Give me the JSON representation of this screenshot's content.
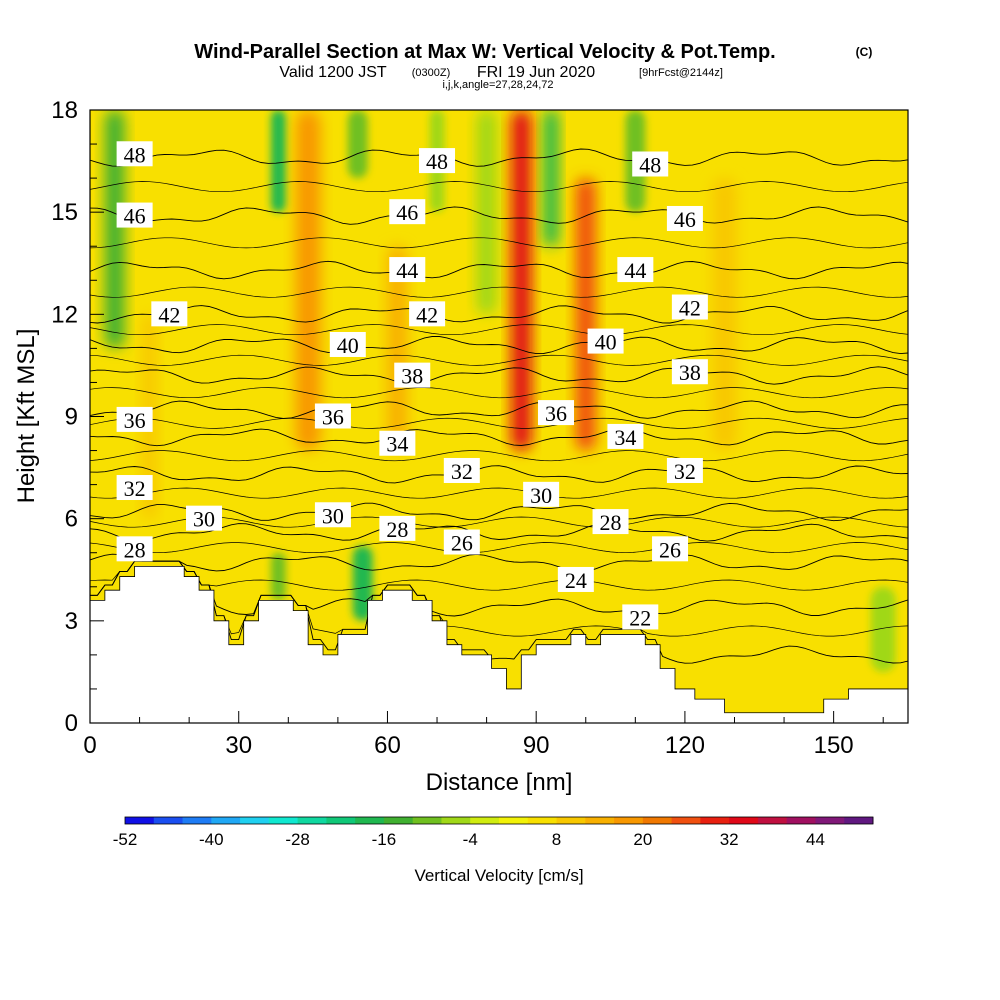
{
  "chart_data": {
    "type": "heatmap",
    "title": {
      "main": "Wind-Parallel Section at Max W: Vertical Velocity & Pot.Temp.",
      "copyright": "(C)",
      "line2_a": "Valid 1200 JST",
      "line2_b": "(0300Z)",
      "line2_c": "FRI 19 Jun 2020",
      "line2_d": "[9hrFcst@2144z]",
      "line3": "i,j,k,angle=27,28,24,72"
    },
    "xlabel": "Distance [nm]",
    "ylabel": "Height [Kft MSL]",
    "xlim": [
      0,
      165
    ],
    "ylim": [
      0,
      18
    ],
    "x_ticks": [
      "0",
      "30",
      "60",
      "90",
      "120",
      "150"
    ],
    "y_ticks": [
      "0",
      "3",
      "6",
      "9",
      "12",
      "15",
      "18"
    ],
    "colorbar": {
      "label": "Vertical Velocity [cm/s]",
      "tick_labels": [
        "-52",
        "-40",
        "-28",
        "-16",
        "-4",
        "8",
        "20",
        "32",
        "44"
      ],
      "levels": [
        -52,
        -48,
        -44,
        -40,
        -36,
        -32,
        -28,
        -24,
        -20,
        -16,
        -12,
        -8,
        -4,
        0,
        4,
        8,
        12,
        16,
        20,
        24,
        28,
        32,
        36,
        40,
        44,
        48
      ],
      "colors": [
        "#1010e6",
        "#1a4ef0",
        "#1e7cf5",
        "#20a8f5",
        "#20d0f0",
        "#10e8d0",
        "#10d8a0",
        "#10c878",
        "#20b850",
        "#40b030",
        "#70c020",
        "#a0d818",
        "#d0ec10",
        "#f2f208",
        "#f8e000",
        "#f8c800",
        "#f8b000",
        "#f89800",
        "#f07800",
        "#f05010",
        "#e82010",
        "#e00818",
        "#c01040",
        "#a01060",
        "#801878",
        "#601880"
      ]
    },
    "theta_isolines": [
      {
        "value": 22,
        "label": "22",
        "y": 2.0
      },
      {
        "value": 24,
        "label": "24",
        "y": 3.4
      },
      {
        "value": 26,
        "label": "26",
        "y": 4.7
      },
      {
        "value": 28,
        "label": "28",
        "y": 5.6
      },
      {
        "value": 30,
        "label": "30",
        "y": 6.2
      },
      {
        "value": 32,
        "label": "32",
        "y": 7.3
      },
      {
        "value": 34,
        "label": "34",
        "y": 8.4
      },
      {
        "value": 36,
        "label": "36",
        "y": 9.2
      },
      {
        "value": 38,
        "label": "38",
        "y": 10.2
      },
      {
        "value": 40,
        "label": "40",
        "y": 11.1
      },
      {
        "value": 42,
        "label": "42",
        "y": 12.0
      },
      {
        "value": 44,
        "label": "44",
        "y": 13.3
      },
      {
        "value": 46,
        "label": "46",
        "y": 14.9
      },
      {
        "value": 48,
        "label": "48",
        "y": 16.6
      }
    ],
    "theta_labels": [
      {
        "text": "48",
        "x": 9,
        "y": 16.7
      },
      {
        "text": "48",
        "x": 70,
        "y": 16.5
      },
      {
        "text": "48",
        "x": 113,
        "y": 16.4
      },
      {
        "text": "46",
        "x": 9,
        "y": 14.9
      },
      {
        "text": "46",
        "x": 64,
        "y": 15.0
      },
      {
        "text": "46",
        "x": 120,
        "y": 14.8
      },
      {
        "text": "44",
        "x": 64,
        "y": 13.3
      },
      {
        "text": "44",
        "x": 110,
        "y": 13.3
      },
      {
        "text": "42",
        "x": 16,
        "y": 12.0
      },
      {
        "text": "42",
        "x": 68,
        "y": 12.0
      },
      {
        "text": "42",
        "x": 121,
        "y": 12.2
      },
      {
        "text": "40",
        "x": 52,
        "y": 11.1
      },
      {
        "text": "40",
        "x": 104,
        "y": 11.2
      },
      {
        "text": "38",
        "x": 65,
        "y": 10.2
      },
      {
        "text": "38",
        "x": 121,
        "y": 10.3
      },
      {
        "text": "36",
        "x": 9,
        "y": 8.9
      },
      {
        "text": "36",
        "x": 49,
        "y": 9.0
      },
      {
        "text": "36",
        "x": 94,
        "y": 9.1
      },
      {
        "text": "34",
        "x": 62,
        "y": 8.2
      },
      {
        "text": "34",
        "x": 108,
        "y": 8.4
      },
      {
        "text": "32",
        "x": 9,
        "y": 6.9
      },
      {
        "text": "32",
        "x": 75,
        "y": 7.4
      },
      {
        "text": "32",
        "x": 120,
        "y": 7.4
      },
      {
        "text": "30",
        "x": 23,
        "y": 6.0
      },
      {
        "text": "30",
        "x": 49,
        "y": 6.1
      },
      {
        "text": "30",
        "x": 91,
        "y": 6.7
      },
      {
        "text": "28",
        "x": 9,
        "y": 5.1
      },
      {
        "text": "28",
        "x": 62,
        "y": 5.7
      },
      {
        "text": "28",
        "x": 105,
        "y": 5.9
      },
      {
        "text": "26",
        "x": 75,
        "y": 5.3
      },
      {
        "text": "26",
        "x": 117,
        "y": 5.1
      },
      {
        "text": "24",
        "x": 98,
        "y": 4.2
      },
      {
        "text": "22",
        "x": 111,
        "y": 3.1
      }
    ],
    "vertical_velocity_bands": [
      {
        "x": 5,
        "width": 4,
        "ytop": 18,
        "ybottom": 11,
        "value": -16
      },
      {
        "x": 12,
        "width": 3,
        "ytop": 12,
        "ybottom": 6,
        "value": 8
      },
      {
        "x": 25,
        "width": 5,
        "ytop": 18,
        "ybottom": 9,
        "value": 6
      },
      {
        "x": 38,
        "width": 3,
        "ytop": 18,
        "ybottom": 15,
        "value": -18
      },
      {
        "x": 44,
        "width": 5,
        "ytop": 18,
        "ybottom": 8,
        "value": 18
      },
      {
        "x": 54,
        "width": 4,
        "ytop": 18,
        "ybottom": 16,
        "value": -10
      },
      {
        "x": 62,
        "width": 4,
        "ytop": 14,
        "ybottom": 8,
        "value": 14
      },
      {
        "x": 70,
        "width": 3,
        "ytop": 18,
        "ybottom": 15,
        "value": -8
      },
      {
        "x": 80,
        "width": 4,
        "ytop": 18,
        "ybottom": 12,
        "value": -6
      },
      {
        "x": 87,
        "width": 4,
        "ytop": 18,
        "ybottom": 8,
        "value": 34
      },
      {
        "x": 93,
        "width": 3,
        "ytop": 18,
        "ybottom": 14,
        "value": -18
      },
      {
        "x": 100,
        "width": 4,
        "ytop": 16,
        "ybottom": 8,
        "value": 24
      },
      {
        "x": 110,
        "width": 4,
        "ytop": 18,
        "ybottom": 15,
        "value": -12
      },
      {
        "x": 128,
        "width": 5,
        "ytop": 16,
        "ybottom": 8,
        "value": 8
      },
      {
        "x": 55,
        "width": 4,
        "ytop": 5.2,
        "ybottom": 3.0,
        "value": -20
      },
      {
        "x": 38,
        "width": 3,
        "ytop": 5.0,
        "ybottom": 3.6,
        "value": -10
      },
      {
        "x": 160,
        "width": 5,
        "ytop": 4.0,
        "ybottom": 1.5,
        "value": -6
      }
    ],
    "terrain_profile": [
      {
        "x": 0,
        "y": 3.6
      },
      {
        "x": 3,
        "y": 3.6
      },
      {
        "x": 3,
        "y": 3.9
      },
      {
        "x": 6,
        "y": 3.9
      },
      {
        "x": 6,
        "y": 4.3
      },
      {
        "x": 9,
        "y": 4.3
      },
      {
        "x": 9,
        "y": 4.6
      },
      {
        "x": 19,
        "y": 4.6
      },
      {
        "x": 19,
        "y": 4.3
      },
      {
        "x": 22,
        "y": 4.3
      },
      {
        "x": 22,
        "y": 3.9
      },
      {
        "x": 25,
        "y": 3.9
      },
      {
        "x": 25,
        "y": 3.0
      },
      {
        "x": 28,
        "y": 3.0
      },
      {
        "x": 28,
        "y": 2.3
      },
      {
        "x": 31,
        "y": 2.3
      },
      {
        "x": 31,
        "y": 3.0
      },
      {
        "x": 34,
        "y": 3.0
      },
      {
        "x": 34,
        "y": 3.6
      },
      {
        "x": 41,
        "y": 3.6
      },
      {
        "x": 41,
        "y": 3.3
      },
      {
        "x": 44,
        "y": 3.3
      },
      {
        "x": 44,
        "y": 2.3
      },
      {
        "x": 47,
        "y": 2.3
      },
      {
        "x": 47,
        "y": 2.0
      },
      {
        "x": 50,
        "y": 2.0
      },
      {
        "x": 50,
        "y": 2.6
      },
      {
        "x": 56,
        "y": 2.6
      },
      {
        "x": 56,
        "y": 3.6
      },
      {
        "x": 59,
        "y": 3.6
      },
      {
        "x": 59,
        "y": 3.9
      },
      {
        "x": 65,
        "y": 3.9
      },
      {
        "x": 65,
        "y": 3.6
      },
      {
        "x": 69,
        "y": 3.6
      },
      {
        "x": 69,
        "y": 3.0
      },
      {
        "x": 72,
        "y": 3.0
      },
      {
        "x": 72,
        "y": 2.3
      },
      {
        "x": 75,
        "y": 2.3
      },
      {
        "x": 75,
        "y": 2.0
      },
      {
        "x": 81,
        "y": 2.0
      },
      {
        "x": 81,
        "y": 1.6
      },
      {
        "x": 84,
        "y": 1.6
      },
      {
        "x": 84,
        "y": 1.0
      },
      {
        "x": 87,
        "y": 1.0
      },
      {
        "x": 87,
        "y": 2.0
      },
      {
        "x": 90,
        "y": 2.0
      },
      {
        "x": 90,
        "y": 2.3
      },
      {
        "x": 97,
        "y": 2.3
      },
      {
        "x": 97,
        "y": 2.6
      },
      {
        "x": 100,
        "y": 2.6
      },
      {
        "x": 100,
        "y": 2.3
      },
      {
        "x": 103,
        "y": 2.3
      },
      {
        "x": 103,
        "y": 2.6
      },
      {
        "x": 112,
        "y": 2.6
      },
      {
        "x": 112,
        "y": 2.3
      },
      {
        "x": 115,
        "y": 2.3
      },
      {
        "x": 115,
        "y": 1.6
      },
      {
        "x": 118,
        "y": 1.6
      },
      {
        "x": 118,
        "y": 1.0
      },
      {
        "x": 122,
        "y": 1.0
      },
      {
        "x": 122,
        "y": 0.7
      },
      {
        "x": 128,
        "y": 0.7
      },
      {
        "x": 128,
        "y": 0.3
      },
      {
        "x": 148,
        "y": 0.3
      },
      {
        "x": 148,
        "y": 0.7
      },
      {
        "x": 153,
        "y": 0.7
      },
      {
        "x": 153,
        "y": 1.0
      },
      {
        "x": 165,
        "y": 1.0
      }
    ]
  }
}
